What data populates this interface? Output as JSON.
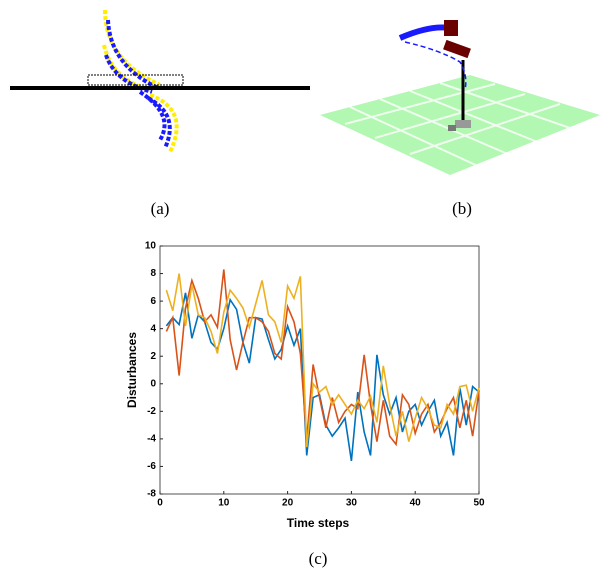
{
  "captions": [
    "(a)",
    "(b)",
    "(c)"
  ],
  "chart_data": {
    "type": "line",
    "xlabel": "Time steps",
    "ylabel": "Disturbances",
    "x": [
      1,
      2,
      3,
      4,
      5,
      6,
      7,
      8,
      9,
      10,
      11,
      12,
      13,
      14,
      15,
      16,
      17,
      18,
      19,
      20,
      21,
      22,
      23,
      24,
      25,
      26,
      27,
      28,
      29,
      30,
      31,
      32,
      33,
      34,
      35,
      36,
      37,
      38,
      39,
      40,
      41,
      42,
      43,
      44,
      45,
      46,
      47,
      48,
      49,
      50
    ],
    "xlim": [
      0,
      50
    ],
    "xticks": [
      0,
      10,
      20,
      30,
      40,
      50
    ],
    "ylim": [
      -8,
      10
    ],
    "yticks": [
      -8,
      -6,
      -4,
      -2,
      0,
      2,
      4,
      6,
      8,
      10
    ],
    "series": [
      {
        "color": "#0072BD",
        "values": [
          4.2,
          4.8,
          4.3,
          6.6,
          3.3,
          5.0,
          4.5,
          3.0,
          2.5,
          4.0,
          6.1,
          5.4,
          3.0,
          1.5,
          4.8,
          4.7,
          3.2,
          1.8,
          2.5,
          4.2,
          2.8,
          4.0,
          -5.2,
          -1.0,
          -0.8,
          -3.0,
          -3.8,
          -3.2,
          -2.5,
          -5.6,
          -0.6,
          -3.5,
          -5.2,
          2.1,
          -0.8,
          -2.2,
          -1.0,
          -3.5,
          -2.0,
          -1.5,
          -3.0,
          -2.0,
          -1.2,
          -3.8,
          -2.8,
          -5.2,
          -0.3,
          -3.0,
          -0.2,
          -0.6
        ]
      },
      {
        "color": "#D95319",
        "values": [
          3.8,
          4.8,
          0.6,
          5.5,
          7.5,
          6.2,
          4.5,
          5.0,
          4.1,
          8.3,
          3.2,
          1.0,
          3.0,
          4.8,
          4.8,
          4.5,
          3.8,
          2.2,
          1.8,
          5.6,
          4.5,
          2.2,
          -4.0,
          1.4,
          -1.0,
          -3.2,
          -1.0,
          -2.8,
          -2.0,
          -1.5,
          -1.8,
          2.1,
          -1.5,
          -4.2,
          -1.2,
          -3.8,
          -4.4,
          -0.8,
          -1.5,
          -3.6,
          -2.2,
          -1.5,
          -3.5,
          -2.8,
          -1.8,
          -1.0,
          -3.2,
          -1.2,
          -3.8,
          -0.5
        ]
      },
      {
        "color": "#EDB120",
        "values": [
          6.8,
          5.3,
          8.0,
          4.2,
          7.2,
          5.0,
          4.8,
          3.8,
          2.2,
          5.2,
          6.8,
          6.2,
          5.5,
          4.1,
          5.8,
          7.5,
          5.0,
          4.5,
          3.0,
          7.1,
          6.2,
          7.8,
          -4.6,
          0.0,
          -0.6,
          -0.2,
          -1.5,
          -0.8,
          -1.5,
          -2.2,
          -1.2,
          -1.8,
          -0.9,
          -2.8,
          1.3,
          -1.5,
          -3.8,
          -2.0,
          -4.2,
          -2.5,
          -1.0,
          -1.8,
          -3.0,
          -3.2,
          -1.5,
          -2.2,
          -0.2,
          -0.1,
          -2.0,
          -0.3
        ]
      }
    ]
  }
}
